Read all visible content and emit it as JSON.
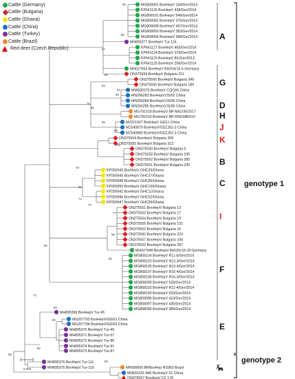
{
  "colors": {
    "Germany": "#1fa84a",
    "Bulgaria": "#d81f26",
    "Ghana": "#f3e600",
    "China": "#1c6fc4",
    "Turkey": "#7a2f9c",
    "Brazil": "#f0892a",
    "RedDeer": "#d40000",
    "tree": "#555555",
    "red_label": "#e3221f"
  },
  "legend": [
    {
      "label": "Cattle (Germany)",
      "key": "Germany",
      "shape": "circle"
    },
    {
      "label": "Cattle (Bulgaria)",
      "key": "Bulgaria",
      "shape": "diamond"
    },
    {
      "label": "Cattle (Ghana)",
      "key": "Ghana",
      "shape": "circle"
    },
    {
      "label": "Cattle (China)",
      "key": "China",
      "shape": "circle"
    },
    {
      "label": "Cattle (Turkey)",
      "key": "Turkey",
      "shape": "circle"
    },
    {
      "label": "Cattle (Brazil)",
      "key": "Brazil",
      "shape": "circle"
    },
    {
      "label": "Red deer (Czech Republic)",
      "key": "RedDeer",
      "shape": "triangle"
    }
  ],
  "taxa": [
    {
      "label": "MG808091 BovHepV 184/Ger/2014",
      "country": "Germany"
    },
    {
      "label": "KP641126 BovHepV 438/Ger/2014",
      "country": "Germany"
    },
    {
      "label": "MG808101 BovHepV 546/Ger/2014",
      "country": "Germany"
    },
    {
      "label": "MG808092 BovHepV 376/Ger/2014",
      "country": "Germany"
    },
    {
      "label": "MG808098 BovHepV 497/Ger/2014",
      "country": "Germany"
    },
    {
      "label": "MG808093 BovHepV 383/Ger/2014",
      "country": "Germany"
    },
    {
      "label": "MG808094 BovHepV 388/Ger/2014",
      "country": "Germany"
    },
    {
      "label": "MH895377 BovHepV Tur-116",
      "country": "Turkey"
    },
    {
      "label": "KP641127 BovHepV 463/Ger/2014",
      "country": "Germany"
    },
    {
      "label": "KP641124 BovHepV 379/Ger/2014",
      "country": "Germany"
    },
    {
      "label": "KP641123 BovHepV B1/Ger/2013",
      "country": "Germany"
    },
    {
      "label": "KP641125 BovHepV 209/Ger/2014",
      "country": "Germany"
    },
    {
      "label": "MH027953 BovHepV BH204/16-6 Germany",
      "country": "Germany"
    },
    {
      "label": "ON375559 BovHepV Bulgaria 211",
      "country": "Bulgaria"
    },
    {
      "label": "ON375566 BovHepV Bulgaria 349",
      "country": "Bulgaria"
    },
    {
      "label": "ON375556 BovHepV Bulgaria 180",
      "country": "Bulgaria"
    },
    {
      "label": "MW830376 BovHepV CQ/166 China",
      "country": "China"
    },
    {
      "label": "MN266283 BovHepV/JS/02 China",
      "country": "China"
    },
    {
      "label": "MN266284 BovHepV/JS/05 China",
      "country": "China"
    },
    {
      "label": "MN266285 BovHepV/JS/06 China",
      "country": "China"
    },
    {
      "label": "MG781018 BovHepV BR MA2/36/2017",
      "country": "Brazil"
    },
    {
      "label": "MG781019 BovHepV BR RN034B/019",
      "country": "Brazil"
    },
    {
      "label": "MZ221927 BovHepV GDZJ China",
      "country": "China"
    },
    {
      "label": "MZ540879 BovHepV/GDZJ02-3 China",
      "country": "China"
    },
    {
      "label": "MZ540880 BovHepV/GDZJ02-3 China",
      "country": "China"
    },
    {
      "label": "ON375564 BovHepV Bulgaria 309",
      "country": "Bulgaria"
    },
    {
      "label": "ON375565 BovHepV Bulgaria 313",
      "country": "Bulgaria"
    },
    {
      "label": "ON375550 BovHepV Bulgaria 9",
      "country": "Bulgaria"
    },
    {
      "label": "ON375558 BovHepV Bulgaria 195",
      "country": "Bulgaria"
    },
    {
      "label": "ON375562 BovHepV Bulgaria 285",
      "country": "Bulgaria"
    },
    {
      "label": "ON375561 BovHepV Bulgaria 230",
      "country": "Bulgaria"
    },
    {
      "label": "KP265943 BovHepV GHC25/Ghana",
      "country": "Ghana"
    },
    {
      "label": "KP265945 BovHepV GHC37/Ghana",
      "country": "Ghana"
    },
    {
      "label": "KP265948 BovHepV GHC85/Ghana",
      "country": "Ghana"
    },
    {
      "label": "KP265950 BovHepV GHC100/Ghana",
      "country": "Ghana"
    },
    {
      "label": "KP265942 BovHepV GHC11/Ghana",
      "country": "Ghana"
    },
    {
      "label": "KP265946 BovHepV GHC52/Ghana",
      "country": "Ghana"
    },
    {
      "label": "KP265947 BovHepV GHC55/Ghana",
      "country": "Ghana"
    },
    {
      "label": "ON375551 BovHepV Bulgaria 13",
      "country": "Bulgaria"
    },
    {
      "label": "ON375553 BovHepV Bulgaria 17",
      "country": "Bulgaria"
    },
    {
      "label": "ON375554 BovHepV Bulgaria 19",
      "country": "Bulgaria"
    },
    {
      "label": "ON375555 BovHepV Bulgaria 131",
      "country": "Bulgaria"
    },
    {
      "label": "ON375552 BovHepV Bulgaria 16",
      "country": "Bulgaria"
    },
    {
      "label": "ON375560 BovHepV Bulgaria 224",
      "country": "Bulgaria"
    },
    {
      "label": "ON375557 BovHepV Bulgaria 194",
      "country": "Bulgaria"
    },
    {
      "label": "ON375563 BovHepV Bulgaria 297",
      "country": "Bulgaria"
    },
    {
      "label": "MH027948 BovHepV BH181/16-20 Germany",
      "country": "Germany"
    },
    {
      "label": "MG808104 BovHepV R11-6/Ger/2014",
      "country": "Germany"
    },
    {
      "label": "MG808103 BovHepV R13-3/Ger/2014",
      "country": "Germany"
    },
    {
      "label": "MG808105 BovHepV R13-9/Ger/2014",
      "country": "Germany"
    },
    {
      "label": "MG808107 BovHepV R16-4/Ger/2014",
      "country": "Germany"
    },
    {
      "label": "MG808106 BovHepV R16-3/Ger/2014",
      "country": "Germany"
    },
    {
      "label": "MG808099 BovHepV 528/Ger/2014",
      "country": "Germany"
    },
    {
      "label": "MG808102 BovHepV R11-4/Ger/2014",
      "country": "Germany"
    },
    {
      "label": "MG808100 BovHepV 533/Ger/2014",
      "country": "Germany"
    },
    {
      "label": "MG808096 BovHepV 410/Ger/2014",
      "country": "Germany"
    },
    {
      "label": "MG808097 BovHepV 435/Ger/2014",
      "country": "Germany"
    },
    {
      "label": "MG808095 BovHepV 389/Ger/2014",
      "country": "Germany"
    },
    {
      "label": "MH895369 BovHepV Tur-45",
      "country": "Turkey"
    },
    {
      "label": "MG257793 BovHepV/GD/01 China",
      "country": "China"
    },
    {
      "label": "MG257794 BovHepV/GD/02 China",
      "country": "China"
    },
    {
      "label": "MH895370 BovHepV Tur-49",
      "country": "Turkey"
    },
    {
      "label": "MH895371 BovHepV Tur-57",
      "country": "Turkey"
    },
    {
      "label": "MH895372 BovHepV Tur-86",
      "country": "Turkey"
    },
    {
      "label": "MH895374 BovHepV Tur-91",
      "country": "Turkey"
    },
    {
      "label": "MH895373 BovHepV Tur-87",
      "country": "Turkey"
    },
    {
      "label": "MH895376 BovHepV Tur-111",
      "country": "Turkey"
    },
    {
      "label": "MH895375 BovHepV Tur-110",
      "country": "Turkey"
    },
    {
      "label": "MK695669 BRBovHep RS963 Brazil",
      "country": "Brazil"
    },
    {
      "label": "MN691105 IME BovHepV 01 China",
      "country": "China"
    },
    {
      "label": "ON375567 BovHepV CZ 178",
      "country": "RedDeer"
    }
  ],
  "bootstrap": [
    "85",
    "88",
    "97",
    "98",
    "93",
    "92",
    "99",
    "76",
    "99",
    "99",
    "98",
    "98",
    "78",
    "99",
    "74",
    "70",
    "77",
    "99",
    "90",
    "95",
    "73",
    "99",
    "89",
    "89",
    "99",
    "99"
  ],
  "clades": [
    {
      "name": "A",
      "red": false
    },
    {
      "name": "G",
      "red": false
    },
    {
      "name": "D",
      "red": false
    },
    {
      "name": "H",
      "red": false
    },
    {
      "name": "J",
      "red": true
    },
    {
      "name": "K",
      "red": true
    },
    {
      "name": "B",
      "red": false
    },
    {
      "name": "C",
      "red": false
    },
    {
      "name": "I",
      "red": true
    },
    {
      "name": "F",
      "red": false
    },
    {
      "name": "E",
      "red": false
    }
  ],
  "genotypes": [
    "genotype 1",
    "genotype 2"
  ],
  "scale_label": "0.050"
}
